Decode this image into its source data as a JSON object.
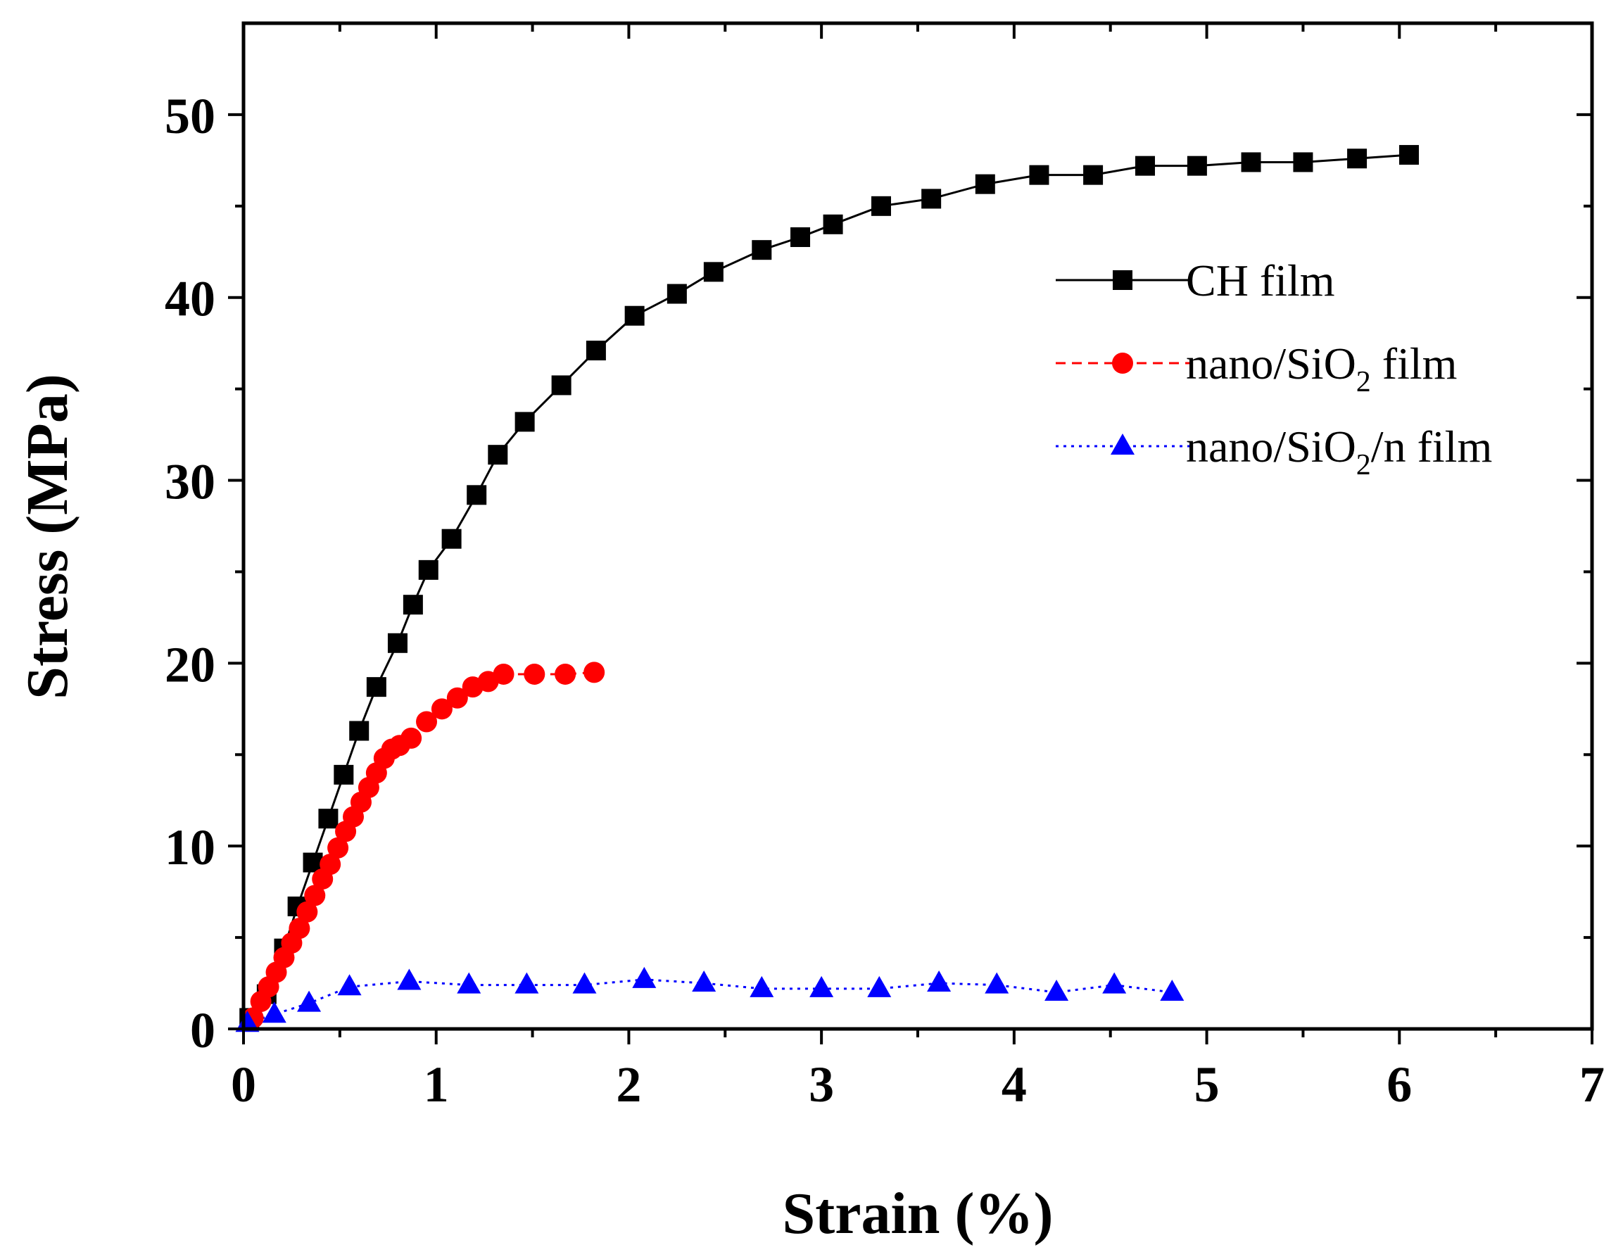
{
  "chart_data": {
    "type": "line",
    "title": "",
    "xlabel": "Strain (%)",
    "ylabel": "Stress (MPa)",
    "xlim": [
      0,
      7
    ],
    "ylim": [
      0,
      55
    ],
    "x_ticks": [
      0,
      1,
      2,
      3,
      4,
      5,
      6,
      7
    ],
    "y_ticks": [
      0,
      10,
      20,
      30,
      40,
      50
    ],
    "x_tick_labels": [
      "0",
      "1",
      "2",
      "3",
      "4",
      "5",
      "6",
      "7"
    ],
    "y_tick_labels": [
      "0",
      "10",
      "20",
      "30",
      "40",
      "50"
    ],
    "grid": false,
    "legend_position": "upper-right",
    "series": [
      {
        "name": "CH film",
        "legend_main": "CH film",
        "legend_sub": "",
        "legend_tail": "",
        "color": "#000000",
        "marker": "square",
        "line_style": "solid",
        "x": [
          0.03,
          0.12,
          0.21,
          0.28,
          0.36,
          0.44,
          0.52,
          0.6,
          0.69,
          0.8,
          0.88,
          0.96,
          1.08,
          1.21,
          1.32,
          1.46,
          1.65,
          1.83,
          2.03,
          2.25,
          2.44,
          2.69,
          2.89,
          3.06,
          3.31,
          3.57,
          3.85,
          4.13,
          4.41,
          4.68,
          4.95,
          5.23,
          5.5,
          5.78,
          6.05
        ],
        "y": [
          0.6,
          1.9,
          4.4,
          6.7,
          9.1,
          11.5,
          13.9,
          16.3,
          18.7,
          21.1,
          23.2,
          25.1,
          26.8,
          29.2,
          31.4,
          33.2,
          35.2,
          37.1,
          39.0,
          40.2,
          41.4,
          42.6,
          43.3,
          44.0,
          45.0,
          45.4,
          46.2,
          46.7,
          46.7,
          47.2,
          47.2,
          47.4,
          47.4,
          47.6,
          47.8
        ]
      },
      {
        "name": "nano/SiO2 film",
        "legend_main": "nano/SiO",
        "legend_sub": "2",
        "legend_tail": " film",
        "color": "#ff0000",
        "marker": "circle",
        "line_style": "dashed",
        "x": [
          0.05,
          0.09,
          0.13,
          0.17,
          0.21,
          0.25,
          0.29,
          0.33,
          0.37,
          0.41,
          0.45,
          0.49,
          0.53,
          0.57,
          0.61,
          0.65,
          0.69,
          0.73,
          0.77,
          0.81,
          0.87,
          0.95,
          1.03,
          1.11,
          1.19,
          1.27,
          1.35,
          1.51,
          1.67,
          1.82
        ],
        "y": [
          0.6,
          1.5,
          2.3,
          3.1,
          3.9,
          4.7,
          5.5,
          6.4,
          7.3,
          8.2,
          9.0,
          9.9,
          10.8,
          11.6,
          12.4,
          13.2,
          14.0,
          14.8,
          15.3,
          15.5,
          15.9,
          16.8,
          17.5,
          18.1,
          18.7,
          19.0,
          19.4,
          19.4,
          19.4,
          19.5
        ]
      },
      {
        "name": "nano/SiO2/n film",
        "legend_main": "nano/SiO",
        "legend_sub": "2",
        "legend_tail": "/n film",
        "color": "#0000ff",
        "marker": "triangle",
        "line_style": "dotted",
        "x": [
          0.02,
          0.16,
          0.34,
          0.55,
          0.86,
          1.17,
          1.47,
          1.77,
          2.08,
          2.39,
          2.69,
          3.0,
          3.3,
          3.61,
          3.91,
          4.22,
          4.52,
          4.82
        ],
        "y": [
          0.3,
          0.8,
          1.4,
          2.3,
          2.6,
          2.4,
          2.4,
          2.4,
          2.7,
          2.5,
          2.2,
          2.2,
          2.2,
          2.5,
          2.4,
          2.0,
          2.4,
          2.0
        ]
      }
    ]
  }
}
